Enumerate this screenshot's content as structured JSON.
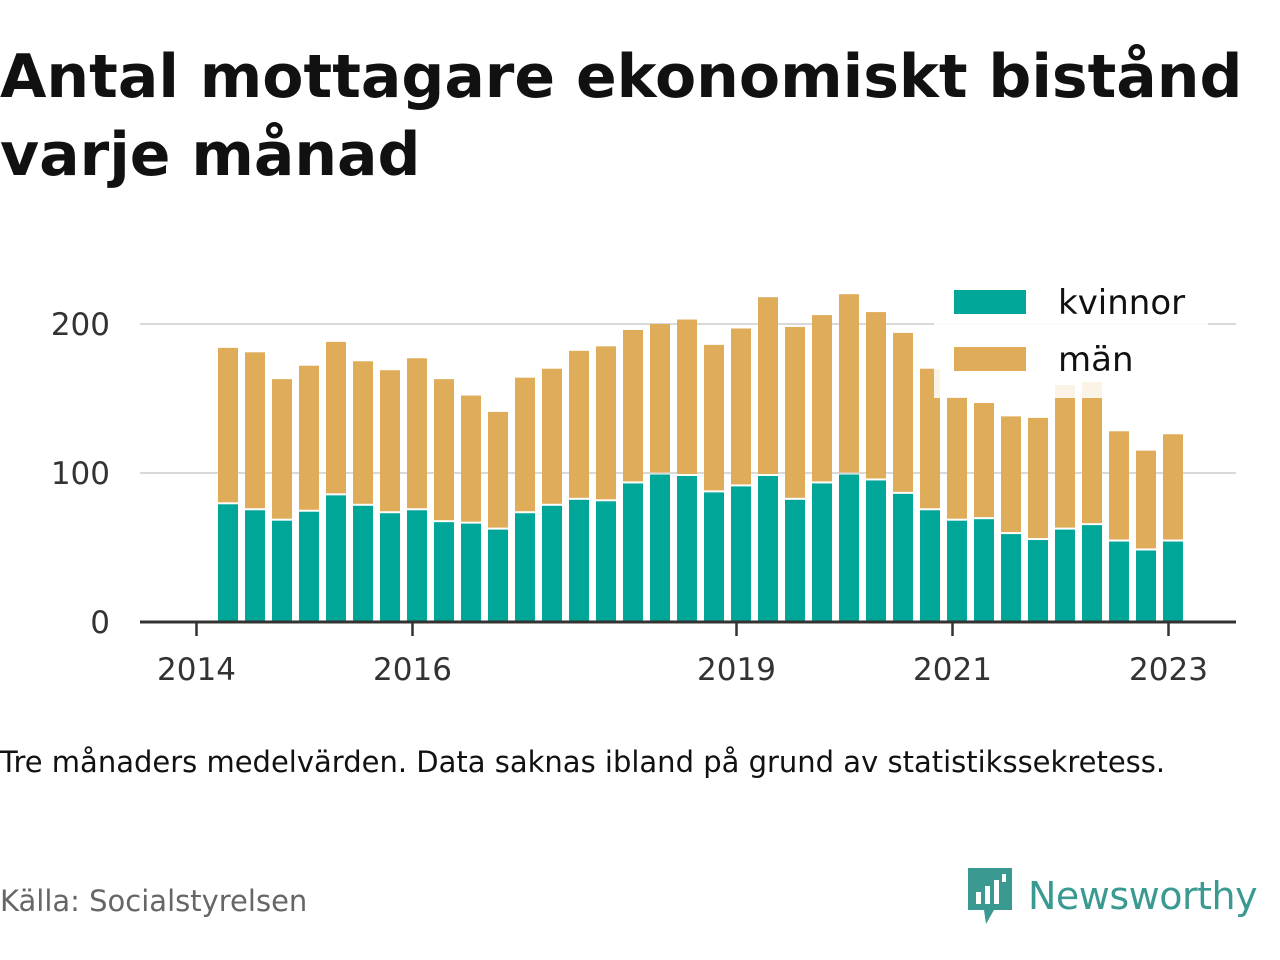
{
  "title": "Antal mottagare ekonomiskt bistånd varje månad",
  "note": "Tre månaders medelvärden. Data saknas ibland på grund av statistikssekretess.",
  "source": "Källa: Socialstyrelsen",
  "brand": "Newsworthy",
  "colors": {
    "kvinnor": "#00a697",
    "man": "#dfad5a",
    "brand": "#3a9a91"
  },
  "chart_data": {
    "type": "bar",
    "stacked": true,
    "x": [
      "2014-04",
      "2014-07",
      "2014-10",
      "2015-01",
      "2015-04",
      "2015-07",
      "2015-10",
      "2016-01",
      "2016-04",
      "2016-07",
      "2016-10",
      "2017-01",
      "2017-04",
      "2017-07",
      "2017-10",
      "2018-01",
      "2018-04",
      "2018-07",
      "2018-10",
      "2019-01",
      "2019-04",
      "2019-07",
      "2019-10",
      "2020-01",
      "2020-04",
      "2020-07",
      "2020-10",
      "2021-01",
      "2021-04",
      "2021-07",
      "2021-10",
      "2022-01",
      "2022-04",
      "2022-07",
      "2022-10",
      "2023-01",
      "2023-04"
    ],
    "series": [
      {
        "name": "kvinnor",
        "values": [
          79,
          75,
          68,
          74,
          85,
          78,
          73,
          75,
          67,
          66,
          62,
          73,
          78,
          82,
          81,
          93,
          99,
          98,
          87,
          91,
          98,
          82,
          93,
          99,
          95,
          86,
          75,
          68,
          69,
          59,
          55,
          62,
          65,
          54,
          48,
          54,
          0
        ]
      },
      {
        "name": "män",
        "values": [
          105,
          106,
          95,
          98,
          103,
          97,
          96,
          102,
          96,
          86,
          79,
          91,
          92,
          100,
          104,
          103,
          101,
          105,
          99,
          106,
          120,
          116,
          113,
          121,
          113,
          108,
          95,
          83,
          78,
          79,
          82,
          97,
          96,
          74,
          67,
          72,
          0
        ]
      }
    ],
    "yticks": [
      0,
      100,
      200
    ],
    "ylim": [
      0,
      230
    ],
    "xticks": [
      "2014",
      "2016",
      "2019",
      "2021",
      "2023"
    ],
    "grid": true,
    "legend": "top-right"
  }
}
